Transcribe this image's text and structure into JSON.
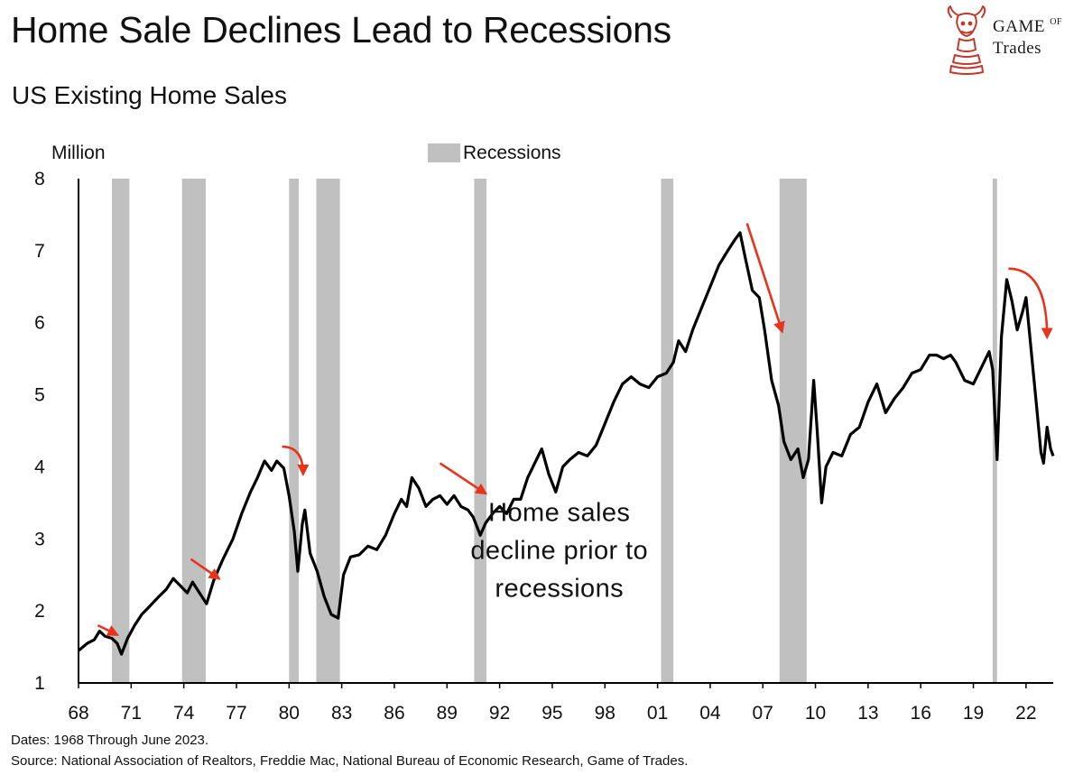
{
  "header": {
    "title": "Home Sale Declines Lead to Recessions",
    "subtitle": "US Existing Home Sales"
  },
  "logo": {
    "line1_main": "Game",
    "line1_small": "of",
    "line2": "Trades",
    "color": "#c0392b"
  },
  "footer": {
    "dates_note": "Dates: 1968 Through June 2023.",
    "source_note": "Source: National Association of Realtors, Freddie Mac, National Bureau of Economic Research, Game of Trades."
  },
  "chart_data": {
    "type": "line",
    "title": "US Existing Home Sales",
    "ylabel": "Million",
    "xlabel": "",
    "ylim": [
      1,
      8
    ],
    "xlim": [
      1968.0,
      2023.55
    ],
    "yticks": [
      1,
      2,
      3,
      4,
      5,
      6,
      7,
      8
    ],
    "xticks": [
      {
        "year": 1968,
        "label": "68"
      },
      {
        "year": 1971,
        "label": "71"
      },
      {
        "year": 1974,
        "label": "74"
      },
      {
        "year": 1977,
        "label": "77"
      },
      {
        "year": 1980,
        "label": "80"
      },
      {
        "year": 1983,
        "label": "83"
      },
      {
        "year": 1986,
        "label": "86"
      },
      {
        "year": 1989,
        "label": "89"
      },
      {
        "year": 1992,
        "label": "92"
      },
      {
        "year": 1995,
        "label": "95"
      },
      {
        "year": 1998,
        "label": "98"
      },
      {
        "year": 2001,
        "label": "01"
      },
      {
        "year": 2004,
        "label": "04"
      },
      {
        "year": 2007,
        "label": "07"
      },
      {
        "year": 2010,
        "label": "10"
      },
      {
        "year": 2013,
        "label": "13"
      },
      {
        "year": 2016,
        "label": "16"
      },
      {
        "year": 2019,
        "label": "19"
      },
      {
        "year": 2022,
        "label": "22"
      }
    ],
    "legend": {
      "label": "Recessions",
      "placement": "top-center",
      "color": "#c0c0c0"
    },
    "line_color": "#000000",
    "arrow_color": "#e8341c",
    "grid": false,
    "recessions": [
      [
        1969.9,
        1970.9
      ],
      [
        1973.9,
        1975.25
      ],
      [
        1980.0,
        1980.55
      ],
      [
        1981.55,
        1982.9
      ],
      [
        1990.55,
        1991.25
      ],
      [
        2001.2,
        2001.9
      ],
      [
        2007.95,
        2009.5
      ],
      [
        2020.1,
        2020.35
      ]
    ],
    "annotation": {
      "lines": [
        "Home sales",
        "decline prior to",
        "recessions"
      ],
      "x": 1991.1,
      "y": 3.25
    },
    "arrows": [
      {
        "type": "straight",
        "from": [
          1969.1,
          1.8
        ],
        "to": [
          1970.2,
          1.67
        ]
      },
      {
        "type": "straight",
        "from": [
          1974.4,
          2.72
        ],
        "to": [
          1976.0,
          2.45
        ]
      },
      {
        "type": "curved",
        "from": [
          1979.6,
          4.28
        ],
        "to": [
          1980.8,
          3.9
        ]
      },
      {
        "type": "straight",
        "from": [
          1988.6,
          4.05
        ],
        "to": [
          1991.2,
          3.63
        ]
      },
      {
        "type": "straight",
        "from": [
          2006.1,
          7.38
        ],
        "to": [
          2008.1,
          5.88
        ]
      },
      {
        "type": "curved",
        "from": [
          2021.0,
          6.75
        ],
        "to": [
          2023.2,
          5.8
        ]
      }
    ],
    "series": [
      {
        "values": [
          [
            1968.0,
            1.45
          ],
          [
            1968.5,
            1.55
          ],
          [
            1968.9,
            1.6
          ],
          [
            1969.2,
            1.72
          ],
          [
            1969.5,
            1.65
          ],
          [
            1969.9,
            1.62
          ],
          [
            1970.2,
            1.55
          ],
          [
            1970.45,
            1.4
          ],
          [
            1970.8,
            1.62
          ],
          [
            1971.2,
            1.8
          ],
          [
            1971.6,
            1.95
          ],
          [
            1972.0,
            2.05
          ],
          [
            1972.5,
            2.18
          ],
          [
            1973.0,
            2.3
          ],
          [
            1973.4,
            2.45
          ],
          [
            1973.8,
            2.35
          ],
          [
            1974.2,
            2.25
          ],
          [
            1974.5,
            2.4
          ],
          [
            1974.9,
            2.25
          ],
          [
            1975.3,
            2.1
          ],
          [
            1975.7,
            2.42
          ],
          [
            1976.2,
            2.7
          ],
          [
            1976.8,
            3.0
          ],
          [
            1977.3,
            3.35
          ],
          [
            1977.8,
            3.65
          ],
          [
            1978.2,
            3.85
          ],
          [
            1978.6,
            4.08
          ],
          [
            1979.0,
            3.95
          ],
          [
            1979.3,
            4.08
          ],
          [
            1979.7,
            3.98
          ],
          [
            1980.0,
            3.6
          ],
          [
            1980.3,
            3.1
          ],
          [
            1980.5,
            2.55
          ],
          [
            1980.75,
            3.2
          ],
          [
            1980.9,
            3.4
          ],
          [
            1981.2,
            2.8
          ],
          [
            1981.6,
            2.55
          ],
          [
            1982.0,
            2.2
          ],
          [
            1982.4,
            1.95
          ],
          [
            1982.8,
            1.9
          ],
          [
            1983.1,
            2.5
          ],
          [
            1983.5,
            2.75
          ],
          [
            1984.0,
            2.78
          ],
          [
            1984.5,
            2.9
          ],
          [
            1985.0,
            2.85
          ],
          [
            1985.5,
            3.05
          ],
          [
            1986.0,
            3.35
          ],
          [
            1986.4,
            3.55
          ],
          [
            1986.7,
            3.45
          ],
          [
            1987.0,
            3.85
          ],
          [
            1987.4,
            3.7
          ],
          [
            1987.8,
            3.45
          ],
          [
            1988.2,
            3.55
          ],
          [
            1988.6,
            3.6
          ],
          [
            1989.0,
            3.48
          ],
          [
            1989.4,
            3.6
          ],
          [
            1989.8,
            3.45
          ],
          [
            1990.2,
            3.4
          ],
          [
            1990.5,
            3.3
          ],
          [
            1990.9,
            3.05
          ],
          [
            1991.2,
            3.22
          ],
          [
            1991.6,
            3.35
          ],
          [
            1992.0,
            3.45
          ],
          [
            1992.4,
            3.35
          ],
          [
            1992.8,
            3.55
          ],
          [
            1993.2,
            3.55
          ],
          [
            1993.6,
            3.85
          ],
          [
            1994.0,
            4.05
          ],
          [
            1994.4,
            4.25
          ],
          [
            1994.8,
            3.9
          ],
          [
            1995.2,
            3.65
          ],
          [
            1995.6,
            4.0
          ],
          [
            1996.0,
            4.1
          ],
          [
            1996.5,
            4.2
          ],
          [
            1997.0,
            4.15
          ],
          [
            1997.5,
            4.3
          ],
          [
            1998.0,
            4.6
          ],
          [
            1998.5,
            4.9
          ],
          [
            1999.0,
            5.15
          ],
          [
            1999.5,
            5.25
          ],
          [
            2000.0,
            5.15
          ],
          [
            2000.5,
            5.1
          ],
          [
            2001.0,
            5.25
          ],
          [
            2001.5,
            5.3
          ],
          [
            2001.9,
            5.45
          ],
          [
            2002.2,
            5.75
          ],
          [
            2002.6,
            5.6
          ],
          [
            2003.0,
            5.9
          ],
          [
            2003.5,
            6.2
          ],
          [
            2004.0,
            6.5
          ],
          [
            2004.5,
            6.8
          ],
          [
            2005.0,
            7.0
          ],
          [
            2005.4,
            7.15
          ],
          [
            2005.7,
            7.25
          ],
          [
            2006.0,
            6.9
          ],
          [
            2006.4,
            6.45
          ],
          [
            2006.8,
            6.35
          ],
          [
            2007.1,
            5.9
          ],
          [
            2007.5,
            5.2
          ],
          [
            2007.9,
            4.85
          ],
          [
            2008.2,
            4.35
          ],
          [
            2008.6,
            4.1
          ],
          [
            2009.0,
            4.25
          ],
          [
            2009.3,
            3.85
          ],
          [
            2009.6,
            4.1
          ],
          [
            2009.9,
            5.2
          ],
          [
            2010.1,
            4.5
          ],
          [
            2010.35,
            3.5
          ],
          [
            2010.6,
            4.0
          ],
          [
            2011.0,
            4.2
          ],
          [
            2011.5,
            4.15
          ],
          [
            2012.0,
            4.45
          ],
          [
            2012.5,
            4.55
          ],
          [
            2013.0,
            4.9
          ],
          [
            2013.5,
            5.15
          ],
          [
            2014.0,
            4.75
          ],
          [
            2014.5,
            4.95
          ],
          [
            2015.0,
            5.1
          ],
          [
            2015.5,
            5.3
          ],
          [
            2016.0,
            5.35
          ],
          [
            2016.5,
            5.55
          ],
          [
            2016.9,
            5.55
          ],
          [
            2017.3,
            5.5
          ],
          [
            2017.7,
            5.55
          ],
          [
            2018.0,
            5.45
          ],
          [
            2018.5,
            5.2
          ],
          [
            2019.0,
            5.15
          ],
          [
            2019.5,
            5.4
          ],
          [
            2019.9,
            5.6
          ],
          [
            2020.1,
            5.35
          ],
          [
            2020.35,
            4.1
          ],
          [
            2020.6,
            5.8
          ],
          [
            2020.9,
            6.6
          ],
          [
            2021.2,
            6.3
          ],
          [
            2021.5,
            5.9
          ],
          [
            2021.8,
            6.15
          ],
          [
            2022.0,
            6.35
          ],
          [
            2022.3,
            5.6
          ],
          [
            2022.6,
            4.85
          ],
          [
            2022.85,
            4.2
          ],
          [
            2023.0,
            4.05
          ],
          [
            2023.2,
            4.55
          ],
          [
            2023.4,
            4.25
          ],
          [
            2023.55,
            4.15
          ]
        ]
      }
    ]
  }
}
